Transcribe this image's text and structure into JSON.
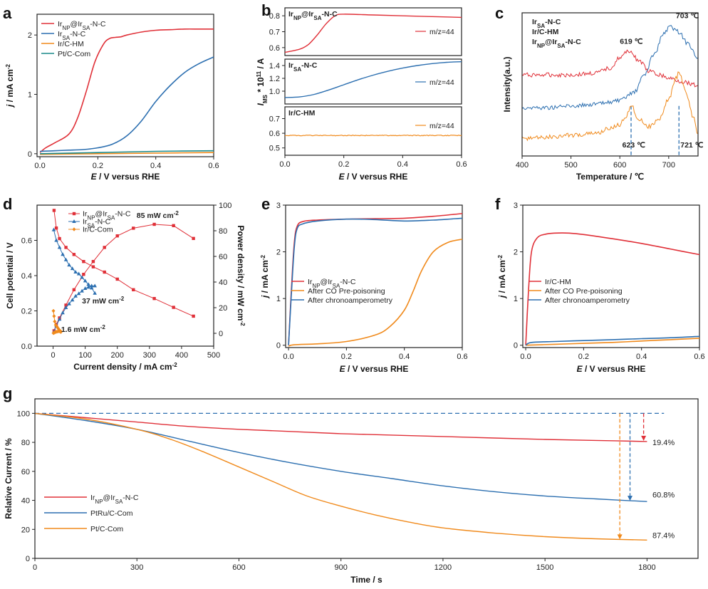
{
  "chart_data": [
    {
      "id": "a",
      "type": "line",
      "panel_label": "a",
      "xlabel_var": "E",
      "xlabel_rest": " / V versus RHE",
      "ylabel_var": "j",
      "ylabel_rest": " / mA cm",
      "ylabel_sup": "-2",
      "xlim": [
        -0.01,
        0.6
      ],
      "ylim": [
        -0.05,
        2.35
      ],
      "xticks": [
        0.0,
        0.2,
        0.4,
        0.6
      ],
      "yticks": [
        0,
        1,
        2
      ],
      "series": [
        {
          "name": "Ir|NP|@Ir|SA|-N-C",
          "color": "#e03038",
          "x": [
            0,
            0.02,
            0.05,
            0.1,
            0.13,
            0.16,
            0.19,
            0.22,
            0.24,
            0.26,
            0.28,
            0.3,
            0.35,
            0.4,
            0.45,
            0.5,
            0.55,
            0.6
          ],
          "y": [
            0.02,
            0.1,
            0.18,
            0.33,
            0.6,
            1.05,
            1.55,
            1.85,
            1.94,
            1.96,
            1.97,
            2.0,
            2.05,
            2.08,
            2.09,
            2.1,
            2.1,
            2.1
          ]
        },
        {
          "name": "Ir|SA|-N-C",
          "color": "#2c6fb0",
          "x": [
            0,
            0.05,
            0.1,
            0.15,
            0.2,
            0.25,
            0.3,
            0.35,
            0.4,
            0.45,
            0.5,
            0.55,
            0.6
          ],
          "y": [
            0.04,
            0.05,
            0.06,
            0.07,
            0.1,
            0.16,
            0.3,
            0.55,
            0.88,
            1.15,
            1.37,
            1.52,
            1.63
          ]
        },
        {
          "name": "Ir/C-HM",
          "color": "#f08a1c",
          "x": [
            0,
            0.2,
            0.4,
            0.6
          ],
          "y": [
            -0.01,
            0.0,
            0.01,
            0.02
          ]
        },
        {
          "name": "Pt/C-Com",
          "color": "#1a8a8a",
          "x": [
            0,
            0.2,
            0.4,
            0.6
          ],
          "y": [
            0.0,
            0.02,
            0.04,
            0.05
          ]
        }
      ]
    },
    {
      "id": "b",
      "type": "line",
      "panel_label": "b",
      "xlabel_var": "E",
      "xlabel_rest": " / V versus RHE",
      "ylabel_var": "I",
      "ylabel_sub": "MS",
      "ylabel_rest": " * 10",
      "ylabel_sup": "11",
      "ylabel_tail": " / A",
      "xlim": [
        0,
        0.6
      ],
      "xticks": [
        0.0,
        0.2,
        0.4,
        0.6
      ],
      "subpanels": [
        {
          "name": "Ir|NP|@Ir|SA|-N-C",
          "color": "#e03038",
          "mz": "m/z=44",
          "ylim": [
            0.55,
            0.85
          ],
          "yticks": [
            0.6,
            0.7,
            0.8
          ],
          "x": [
            0,
            0.05,
            0.08,
            0.11,
            0.14,
            0.17,
            0.2,
            0.3,
            0.4,
            0.5,
            0.6
          ],
          "y": [
            0.57,
            0.59,
            0.62,
            0.68,
            0.75,
            0.8,
            0.81,
            0.805,
            0.8,
            0.795,
            0.79
          ]
        },
        {
          "name": "Ir|SA|-N-C",
          "color": "#2c6fb0",
          "mz": "m/z=44",
          "ylim": [
            0.8,
            1.5
          ],
          "yticks": [
            1.0,
            1.2,
            1.4
          ],
          "x": [
            0,
            0.05,
            0.1,
            0.15,
            0.2,
            0.25,
            0.3,
            0.35,
            0.4,
            0.45,
            0.5,
            0.55,
            0.6
          ],
          "y": [
            0.9,
            0.91,
            0.95,
            1.02,
            1.1,
            1.18,
            1.25,
            1.31,
            1.36,
            1.4,
            1.43,
            1.45,
            1.46
          ]
        },
        {
          "name": "Ir/C-HM",
          "color": "#f08a1c",
          "mz": "m/z=44",
          "ylim": [
            0.45,
            0.78
          ],
          "yticks": [
            0.5,
            0.6,
            0.7
          ],
          "x": [
            0,
            0.6
          ],
          "y": [
            0.585,
            0.585
          ]
        }
      ]
    },
    {
      "id": "c",
      "type": "line",
      "panel_label": "c",
      "xlabel": "Temperature / ℃",
      "ylabel": "Intensity(a.u.)",
      "xlim": [
        400,
        760
      ],
      "xticks": [
        400,
        500,
        600,
        700
      ],
      "series": [
        {
          "name": "Ir|SA|-N-C",
          "color": "#e03038",
          "x": [
            400,
            450,
            500,
            550,
            580,
            600,
            619,
            640,
            660,
            680,
            700,
            730,
            760
          ],
          "y": [
            0.62,
            0.62,
            0.62,
            0.63,
            0.66,
            0.72,
            0.76,
            0.7,
            0.64,
            0.62,
            0.6,
            0.58,
            0.56
          ]
        },
        {
          "name": "Ir/C-HM",
          "color": "#2c6fb0",
          "x": [
            400,
            450,
            500,
            550,
            600,
            630,
            650,
            670,
            690,
            703,
            720,
            740,
            760
          ],
          "y": [
            0.43,
            0.43,
            0.44,
            0.45,
            0.47,
            0.52,
            0.62,
            0.74,
            0.86,
            0.9,
            0.87,
            0.8,
            0.72
          ]
        },
        {
          "name": "Ir|NP|@Ir|SA|-N-C",
          "color": "#f08a1c",
          "x": [
            400,
            450,
            500,
            550,
            580,
            600,
            612,
            623,
            640,
            660,
            680,
            700,
            715,
            721,
            735,
            750,
            760
          ],
          "y": [
            0.25,
            0.26,
            0.27,
            0.28,
            0.31,
            0.33,
            0.38,
            0.44,
            0.36,
            0.32,
            0.36,
            0.48,
            0.6,
            0.64,
            0.52,
            0.38,
            0.28
          ]
        }
      ],
      "annotations": [
        {
          "text": "619 ℃",
          "color": "#e03038"
        },
        {
          "text": "703 ℃",
          "color": "#2c6fb0"
        },
        {
          "text": "623 ℃",
          "color": "#f08a1c"
        },
        {
          "text": "721 ℃",
          "color": "#f08a1c"
        }
      ],
      "vlines": [
        {
          "x": 623,
          "color": "#2c6fb0"
        },
        {
          "x": 721,
          "color": "#2c6fb0"
        }
      ]
    },
    {
      "id": "d",
      "type": "scatter",
      "panel_label": "d",
      "xlabel": "Current density / mA cm",
      "xlabel_sup": "-2",
      "ylabel": "Cell potential / V",
      "y2label": "Power density / mW cm",
      "y2label_sup": "-2",
      "xlim": [
        -50,
        500
      ],
      "ylim": [
        0,
        0.8
      ],
      "y2lim": [
        -10,
        100
      ],
      "xticks": [
        0,
        100,
        200,
        300,
        400,
        500
      ],
      "yticks": [
        0.0,
        0.2,
        0.4,
        0.6
      ],
      "y2ticks": [
        0,
        20,
        40,
        60,
        80,
        100
      ],
      "series": [
        {
          "name": "Ir|NP|@Ir|SA|-N-C",
          "color": "#e03038",
          "marker": "square",
          "polarization": {
            "x": [
              3,
              10,
              20,
              40,
              65,
              95,
              125,
              160,
              200,
              250,
              315,
              375,
              437
            ],
            "y": [
              0.77,
              0.67,
              0.61,
              0.56,
              0.52,
              0.48,
              0.45,
              0.42,
              0.38,
              0.32,
              0.27,
              0.22,
              0.17
            ]
          },
          "power": {
            "x": [
              3,
              10,
              20,
              40,
              65,
              95,
              125,
              160,
              200,
              250,
              315,
              375,
              437
            ],
            "y": [
              2,
              7,
              12,
              22,
              34,
              46,
              56,
              67,
              76,
              82,
              85,
              84,
              74
            ]
          }
        },
        {
          "name": "Ir|SA|-N-C",
          "color": "#2c6fb0",
          "marker": "triangle",
          "polarization": {
            "x": [
              2,
              10,
              20,
              30,
              40,
              50,
              60,
              70,
              80,
              90,
              100,
              110,
              120,
              130
            ],
            "y": [
              0.66,
              0.6,
              0.56,
              0.52,
              0.49,
              0.46,
              0.44,
              0.42,
              0.41,
              0.39,
              0.37,
              0.35,
              0.33,
              0.3
            ]
          },
          "power": {
            "x": [
              2,
              10,
              20,
              30,
              40,
              50,
              60,
              70,
              80,
              90,
              100,
              110,
              120,
              130
            ],
            "y": [
              1,
              6,
              11,
              16,
              20,
              23,
              26,
              29,
              31,
              33,
              35,
              36,
              37,
              37
            ]
          }
        },
        {
          "name": "Ir/C-Com",
          "color": "#f08a1c",
          "marker": "diamond",
          "polarization": {
            "x": [
              1,
              3,
              5,
              8,
              12,
              16,
              20,
              24
            ],
            "y": [
              0.2,
              0.17,
              0.14,
              0.12,
              0.11,
              0.1,
              0.09,
              0.08
            ]
          },
          "power": {
            "x": [
              1,
              3,
              5,
              8,
              12,
              16,
              20,
              24
            ],
            "y": [
              0.2,
              0.5,
              0.7,
              1.0,
              1.3,
              1.5,
              1.6,
              1.6
            ]
          }
        }
      ],
      "annotations": [
        {
          "text": "85 mW cm",
          "sup": "-2",
          "color": "#e03038"
        },
        {
          "text": "37 mW cm",
          "sup": "-2",
          "color": "#2c6fb0"
        },
        {
          "text": "1.6 mW cm",
          "sup": "-2",
          "color": "#f08a1c"
        }
      ]
    },
    {
      "id": "e",
      "type": "line",
      "panel_label": "e",
      "xlabel_var": "E",
      "xlabel_rest": " / V versus RHE",
      "ylabel_var": "j",
      "ylabel_rest": " / mA cm",
      "ylabel_sup": "-2",
      "xlim": [
        -0.01,
        0.6
      ],
      "ylim": [
        -0.05,
        3.0
      ],
      "xticks": [
        0.0,
        0.2,
        0.4,
        0.6
      ],
      "yticks": [
        0,
        1,
        2,
        3
      ],
      "series": [
        {
          "name": "Ir|NP|@Ir|SA|-N-C",
          "color": "#e03038",
          "x": [
            0,
            0.01,
            0.02,
            0.03,
            0.05,
            0.1,
            0.2,
            0.3,
            0.4,
            0.5,
            0.6
          ],
          "y": [
            0,
            1.2,
            2.2,
            2.55,
            2.65,
            2.68,
            2.7,
            2.71,
            2.72,
            2.76,
            2.82
          ]
        },
        {
          "name": "After CO Pre-poisoning",
          "color": "#f08a1c",
          "x": [
            0,
            0.02,
            0.1,
            0.2,
            0.3,
            0.35,
            0.4,
            0.43,
            0.46,
            0.5,
            0.55,
            0.6
          ],
          "y": [
            -0.02,
            0.01,
            0.03,
            0.08,
            0.22,
            0.4,
            0.75,
            1.15,
            1.6,
            2.0,
            2.2,
            2.27
          ]
        },
        {
          "name": "After chronoamperometry",
          "color": "#2c6fb0",
          "x": [
            0,
            0.01,
            0.02,
            0.03,
            0.05,
            0.1,
            0.2,
            0.3,
            0.4,
            0.5,
            0.6
          ],
          "y": [
            0,
            1.1,
            2.1,
            2.5,
            2.6,
            2.66,
            2.7,
            2.69,
            2.66,
            2.68,
            2.72
          ]
        }
      ]
    },
    {
      "id": "f",
      "type": "line",
      "panel_label": "f",
      "xlabel_var": "E",
      "xlabel_rest": " / V versus RHE",
      "ylabel_var": "j",
      "ylabel_rest": " / mA cm",
      "ylabel_sup": "-2",
      "xlim": [
        -0.01,
        0.6
      ],
      "ylim": [
        -0.05,
        3.0
      ],
      "xticks": [
        0.0,
        0.2,
        0.4,
        0.6
      ],
      "yticks": [
        0,
        1,
        2,
        3
      ],
      "series": [
        {
          "name": "Ir/C-HM",
          "color": "#e03038",
          "x": [
            0,
            0.01,
            0.02,
            0.04,
            0.07,
            0.1,
            0.15,
            0.2,
            0.3,
            0.4,
            0.5,
            0.6
          ],
          "y": [
            0,
            1.2,
            2.0,
            2.3,
            2.38,
            2.4,
            2.4,
            2.37,
            2.28,
            2.18,
            2.06,
            1.94
          ]
        },
        {
          "name": "After CO Pre-poisoning",
          "color": "#f08a1c",
          "x": [
            0,
            0.1,
            0.2,
            0.3,
            0.4,
            0.5,
            0.6
          ],
          "y": [
            0.0,
            0.02,
            0.04,
            0.06,
            0.09,
            0.12,
            0.15
          ]
        },
        {
          "name": "After chronoamperometry",
          "color": "#2c6fb0",
          "x": [
            0,
            0.02,
            0.1,
            0.2,
            0.3,
            0.4,
            0.5,
            0.6
          ],
          "y": [
            0.0,
            0.06,
            0.08,
            0.1,
            0.12,
            0.14,
            0.16,
            0.19
          ]
        }
      ]
    },
    {
      "id": "g",
      "type": "line",
      "panel_label": "g",
      "xlabel": "Time / s",
      "ylabel": "Relative Current / %",
      "xlim": [
        0,
        1950
      ],
      "ylim": [
        0,
        110
      ],
      "xticks": [
        0,
        300,
        600,
        900,
        1200,
        1500,
        1800
      ],
      "yticks": [
        0,
        20,
        40,
        60,
        80,
        100
      ],
      "reference": {
        "y": 100,
        "x_end": 1850,
        "color": "#2c6fb0"
      },
      "series": [
        {
          "name": "Ir|NP|@Ir|SA|-N-C",
          "color": "#e03038",
          "drop": "19.4%",
          "arrow_x": 1790,
          "x": [
            0,
            150,
            300,
            450,
            600,
            750,
            900,
            1050,
            1200,
            1350,
            1500,
            1650,
            1800
          ],
          "y": [
            100,
            97,
            94,
            91,
            89,
            87.5,
            86,
            85,
            84,
            83,
            82,
            81.3,
            80.6
          ]
        },
        {
          "name": "PtRu/C-Com",
          "color": "#2c6fb0",
          "drop": "60.8%",
          "arrow_x": 1750,
          "x": [
            0,
            150,
            300,
            450,
            600,
            750,
            900,
            1050,
            1200,
            1350,
            1500,
            1650,
            1800
          ],
          "y": [
            100,
            95,
            89,
            81,
            73,
            66,
            60,
            55,
            50,
            46,
            43,
            41,
            39.2
          ]
        },
        {
          "name": "Pt/C-Com",
          "color": "#f08a1c",
          "drop": "87.4%",
          "arrow_x": 1720,
          "x": [
            0,
            150,
            300,
            400,
            500,
            600,
            700,
            800,
            900,
            1000,
            1100,
            1200,
            1350,
            1500,
            1650,
            1800
          ],
          "y": [
            100,
            96,
            89,
            82,
            73,
            63,
            53,
            43,
            36,
            30,
            25,
            21,
            17.5,
            15,
            13.5,
            12.6
          ]
        }
      ]
    }
  ]
}
